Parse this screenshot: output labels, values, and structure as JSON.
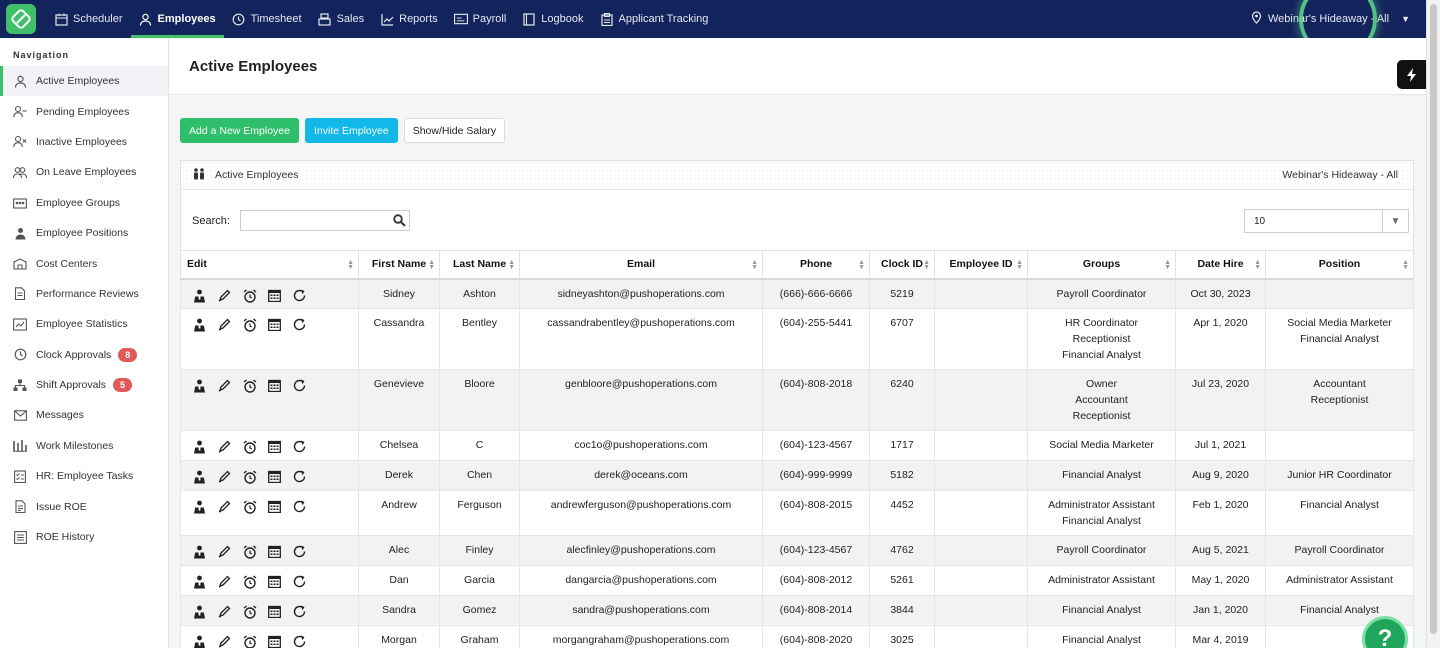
{
  "topnav": {
    "items": [
      {
        "label": "Scheduler",
        "icon": "calendar-icon"
      },
      {
        "label": "Employees",
        "icon": "person-icon",
        "active": true
      },
      {
        "label": "Timesheet",
        "icon": "clock-icon"
      },
      {
        "label": "Sales",
        "icon": "register-icon"
      },
      {
        "label": "Reports",
        "icon": "line-chart-icon"
      },
      {
        "label": "Payroll",
        "icon": "card-icon"
      },
      {
        "label": "Logbook",
        "icon": "book-icon"
      },
      {
        "label": "Applicant Tracking",
        "icon": "clipboard-icon"
      }
    ],
    "location": "Webinar's Hideaway - All"
  },
  "sidebar": {
    "heading": "Navigation",
    "items": [
      {
        "label": "Active Employees",
        "icon": "person-icon",
        "active": true
      },
      {
        "label": "Pending Employees",
        "icon": "person-minus-icon"
      },
      {
        "label": "Inactive Employees",
        "icon": "person-x-icon"
      },
      {
        "label": "On Leave Employees",
        "icon": "people-icon"
      },
      {
        "label": "Employee Groups",
        "icon": "group-icon"
      },
      {
        "label": "Employee Positions",
        "icon": "person-pin-icon"
      },
      {
        "label": "Cost Centers",
        "icon": "building-icon"
      },
      {
        "label": "Performance Reviews",
        "icon": "document-icon"
      },
      {
        "label": "Employee Statistics",
        "icon": "stats-icon"
      },
      {
        "label": "Clock Approvals",
        "icon": "clock-icon",
        "badge": "8"
      },
      {
        "label": "Shift Approvals",
        "icon": "org-chart-icon",
        "badge": "5"
      },
      {
        "label": "Messages",
        "icon": "envelope-icon"
      },
      {
        "label": "Work Milestones",
        "icon": "milestone-icon"
      },
      {
        "label": "HR: Employee Tasks",
        "icon": "tasks-icon"
      },
      {
        "label": "Issue ROE",
        "icon": "file-icon"
      },
      {
        "label": "ROE History",
        "icon": "history-icon"
      }
    ]
  },
  "page": {
    "title": "Active Employees",
    "buttons": {
      "add": "Add a New Employee",
      "invite": "Invite Employee",
      "salary": "Show/Hide Salary"
    },
    "panel_title": "Active Employees",
    "panel_location": "Webinar's Hideaway - All",
    "search_label": "Search:",
    "search_value": "",
    "page_size": "10"
  },
  "table": {
    "columns": [
      "Edit",
      "First Name",
      "Last Name",
      "Email",
      "Phone",
      "Clock ID",
      "Employee ID",
      "Groups",
      "Date Hire",
      "Position"
    ],
    "rows": [
      {
        "first": "Sidney",
        "last": "Ashton",
        "email": "sidneyashton@pushoperations.com",
        "phone": "(666)-666-6666",
        "clock": "5219",
        "empid": "",
        "groups": [
          "Payroll Coordinator"
        ],
        "hire": "Oct 30, 2023",
        "position": []
      },
      {
        "first": "Cassandra",
        "last": "Bentley",
        "email": "cassandrabentley@pushoperations.com",
        "phone": "(604)-255-5441",
        "clock": "6707",
        "empid": "",
        "groups": [
          "HR Coordinator",
          "Receptionist",
          "Financial Analyst"
        ],
        "hire": "Apr 1, 2020",
        "position": [
          "Social Media Marketer",
          "Financial Analyst"
        ]
      },
      {
        "first": "Genevieve",
        "last": "Bloore",
        "email": "genbloore@pushoperations.com",
        "phone": "(604)-808-2018",
        "clock": "6240",
        "empid": "",
        "groups": [
          "Owner",
          "Accountant",
          "Receptionist"
        ],
        "hire": "Jul 23, 2020",
        "position": [
          "Accountant",
          "Receptionist"
        ]
      },
      {
        "first": "Chelsea",
        "last": "C",
        "email": "coc1o@pushoperations.com",
        "phone": "(604)-123-4567",
        "clock": "1717",
        "empid": "",
        "groups": [
          "Social Media Marketer"
        ],
        "hire": "Jul 1, 2021",
        "position": []
      },
      {
        "first": "Derek",
        "last": "Chen",
        "email": "derek@oceans.com",
        "phone": "(604)-999-9999",
        "clock": "5182",
        "empid": "",
        "groups": [
          "Financial Analyst"
        ],
        "hire": "Aug 9, 2020",
        "position": [
          "Junior HR Coordinator"
        ]
      },
      {
        "first": "Andrew",
        "last": "Ferguson",
        "email": "andrewferguson@pushoperations.com",
        "phone": "(604)-808-2015",
        "clock": "4452",
        "empid": "",
        "groups": [
          "Administrator Assistant",
          "Financial Analyst"
        ],
        "hire": "Feb 1, 2020",
        "position": [
          "Financial Analyst"
        ]
      },
      {
        "first": "Alec",
        "last": "Finley",
        "email": "alecfinley@pushoperations.com",
        "phone": "(604)-123-4567",
        "clock": "4762",
        "empid": "",
        "groups": [
          "Payroll Coordinator"
        ],
        "hire": "Aug 5, 2021",
        "position": [
          "Payroll Coordinator"
        ]
      },
      {
        "first": "Dan",
        "last": "Garcia",
        "email": "dangarcia@pushoperations.com",
        "phone": "(604)-808-2012",
        "clock": "5261",
        "empid": "",
        "groups": [
          "Administrator Assistant"
        ],
        "hire": "May 1, 2020",
        "position": [
          "Administrator Assistant"
        ]
      },
      {
        "first": "Sandra",
        "last": "Gomez",
        "email": "sandra@pushoperations.com",
        "phone": "(604)-808-2014",
        "clock": "3844",
        "empid": "",
        "groups": [
          "Financial Analyst"
        ],
        "hire": "Jan 1, 2020",
        "position": [
          "Financial Analyst"
        ]
      },
      {
        "first": "Morgan",
        "last": "Graham",
        "email": "morgangraham@pushoperations.com",
        "phone": "(604)-808-2020",
        "clock": "3025",
        "empid": "",
        "groups": [
          "Financial Analyst"
        ],
        "hire": "Mar 4, 2019",
        "position": []
      }
    ]
  },
  "help_label": "?"
}
